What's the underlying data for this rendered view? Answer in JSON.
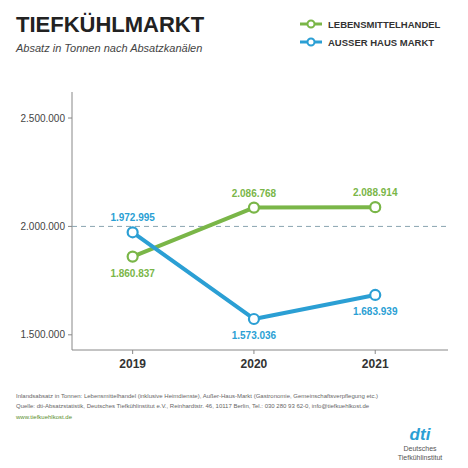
{
  "chart_data": {
    "type": "line",
    "title": "TIEFKÜHLMARKT",
    "subtitle": "Absatz in Tonnen nach Absatzkanälen",
    "x": [
      2019,
      2020,
      2021
    ],
    "xlim": [
      2018.5,
      2021.6
    ],
    "xticks": [
      2019,
      2020,
      2021
    ],
    "ylim": [
      1430000,
      2620000
    ],
    "yticks": [
      {
        "value": 1500000,
        "label": "1.500.000"
      },
      {
        "value": 2000000,
        "label": "2.000.000"
      },
      {
        "value": 2500000,
        "label": "2.500.000"
      }
    ],
    "grid": false,
    "legend": "upper right",
    "data_labels": true,
    "marker": "circle",
    "reference_line": 2000000,
    "series": [
      {
        "name": "LEBENSMITTELHANDEL",
        "color": "#7ab648",
        "values": [
          1860837,
          2086768,
          2088914
        ],
        "value_labels": [
          "1.860.837",
          "2.086.768",
          "2.088.914"
        ]
      },
      {
        "name": "AUSSER HAUS MARKT",
        "color": "#2b9fd4",
        "values": [
          1972995,
          1573036,
          1683939
        ],
        "value_labels": [
          "1.972.995",
          "1.573.036",
          "1.683.939"
        ]
      }
    ],
    "annotations": [
      "Inlandsabsatz in Tonnen: Lebensmittelhandel (inklusive Heimdienste), Außer-Haus-Markt (Gastronomie, Gemeinschaftsverpflegung etc.)",
      "Quelle: dti-Absatzstatistik, Deutsches Tiefkühlinstitut e.V., Reinhardtstr. 46, 10117 Berlin, Tel.: 030 280 93 62-0, info@tiefkuehlkost.de",
      "www.tiefkuehlkost.de",
      "dti",
      "Deutsches",
      "Tiefkühlinstitut"
    ]
  }
}
